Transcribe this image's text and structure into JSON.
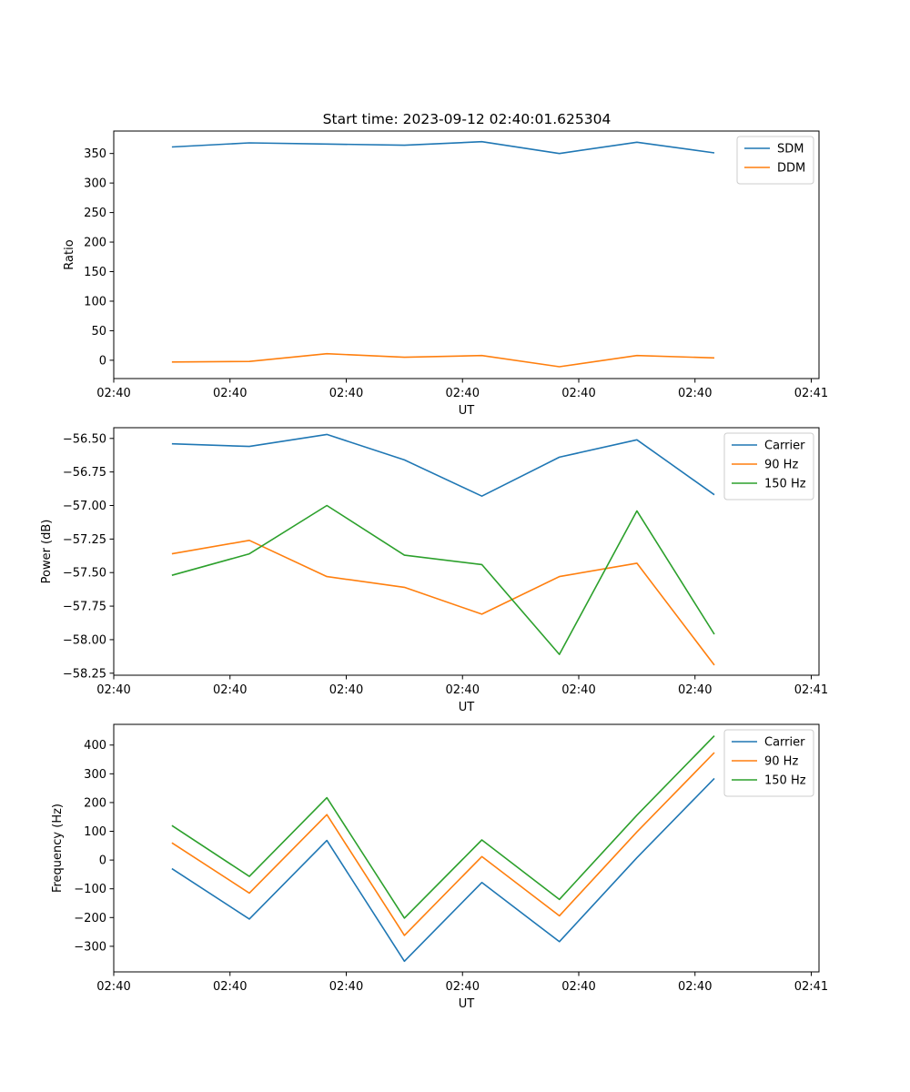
{
  "figure": {
    "title": "Start time: 2023-09-12 02:40:01.625304"
  },
  "colors": {
    "blue": "#1f77b4",
    "orange": "#ff7f0e",
    "green": "#2ca02c"
  },
  "chart_data": [
    {
      "type": "line",
      "title": "Start time: 2023-09-12 02:40:01.625304",
      "xlabel": "UT",
      "ylabel": "Ratio",
      "x": [
        1,
        2,
        3,
        4,
        5,
        6,
        7,
        8
      ],
      "xlim": [
        0.25,
        9.35
      ],
      "xticks": [
        0.25,
        1.75,
        3.25,
        4.75,
        6.25,
        7.75,
        9.25
      ],
      "xtick_labels": [
        "02:40",
        "02:40",
        "02:40",
        "02:40",
        "02:40",
        "02:40",
        "02:41"
      ],
      "ylim": [
        -31,
        388
      ],
      "yticks": [
        0,
        50,
        100,
        150,
        200,
        250,
        300,
        350
      ],
      "ytick_labels": [
        "0",
        "50",
        "100",
        "150",
        "200",
        "250",
        "300",
        "350"
      ],
      "legend": "top-right",
      "series": [
        {
          "name": "SDM",
          "color": "#1f77b4",
          "values": [
            361,
            368,
            366,
            364,
            370,
            350,
            369,
            351
          ]
        },
        {
          "name": "DDM",
          "color": "#ff7f0e",
          "values": [
            -3,
            -2,
            11,
            5,
            8,
            -11,
            8,
            4
          ]
        }
      ]
    },
    {
      "type": "line",
      "xlabel": "UT",
      "ylabel": "Power (dB)",
      "x": [
        1,
        2,
        3,
        4,
        5,
        6,
        7,
        8
      ],
      "xlim": [
        0.25,
        9.35
      ],
      "xticks": [
        0.25,
        1.75,
        3.25,
        4.75,
        6.25,
        7.75,
        9.25
      ],
      "xtick_labels": [
        "02:40",
        "02:40",
        "02:40",
        "02:40",
        "02:40",
        "02:40",
        "02:41"
      ],
      "ylim": [
        -58.265,
        -56.42
      ],
      "yticks": [
        -58.25,
        -58.0,
        -57.75,
        -57.5,
        -57.25,
        -57.0,
        -56.75,
        -56.5
      ],
      "ytick_labels": [
        "−58.25",
        "−58.00",
        "−57.75",
        "−57.50",
        "−57.25",
        "−57.00",
        "−56.75",
        "−56.50"
      ],
      "legend": "top-right",
      "series": [
        {
          "name": "Carrier",
          "color": "#1f77b4",
          "values": [
            -56.54,
            -56.56,
            -56.47,
            -56.66,
            -56.93,
            -56.64,
            -56.51,
            -56.92
          ]
        },
        {
          "name": "90 Hz",
          "color": "#ff7f0e",
          "values": [
            -57.36,
            -57.26,
            -57.53,
            -57.61,
            -57.81,
            -57.53,
            -57.43,
            -58.19
          ]
        },
        {
          "name": "150 Hz",
          "color": "#2ca02c",
          "values": [
            -57.52,
            -57.36,
            -57.0,
            -57.37,
            -57.44,
            -58.11,
            -57.04,
            -57.96
          ]
        }
      ]
    },
    {
      "type": "line",
      "xlabel": "UT",
      "ylabel": "Frequency (Hz)",
      "x": [
        1,
        2,
        3,
        4,
        5,
        6,
        7,
        8
      ],
      "xlim": [
        0.25,
        9.35
      ],
      "xticks": [
        0.25,
        1.75,
        3.25,
        4.75,
        6.25,
        7.75,
        9.25
      ],
      "xtick_labels": [
        "02:40",
        "02:40",
        "02:40",
        "02:40",
        "02:40",
        "02:40",
        "02:41"
      ],
      "ylim": [
        -389,
        472
      ],
      "yticks": [
        -300,
        -200,
        -100,
        0,
        100,
        200,
        300,
        400
      ],
      "ytick_labels": [
        "−300",
        "−200",
        "−100",
        "0",
        "100",
        "200",
        "300",
        "400"
      ],
      "legend": "top-right",
      "series": [
        {
          "name": "Carrier",
          "color": "#1f77b4",
          "values": [
            -30,
            -205,
            68,
            -352,
            -78,
            -284,
            8,
            284
          ]
        },
        {
          "name": "90 Hz",
          "color": "#ff7f0e",
          "values": [
            60,
            -115,
            158,
            -262,
            12,
            -194,
            98,
            374
          ]
        },
        {
          "name": "150 Hz",
          "color": "#2ca02c",
          "values": [
            120,
            -57,
            217,
            -202,
            70,
            -137,
            156,
            432
          ]
        }
      ]
    }
  ]
}
